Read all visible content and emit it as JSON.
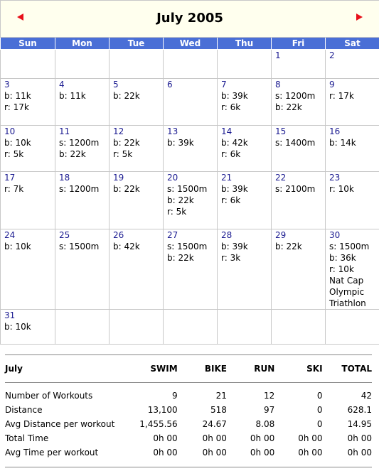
{
  "header": {
    "title": "July 2005"
  },
  "weekdays": [
    "Sun",
    "Mon",
    "Tue",
    "Wed",
    "Thu",
    "Fri",
    "Sat"
  ],
  "weeks": [
    [
      null,
      null,
      null,
      null,
      null,
      {
        "day": "1",
        "entries": []
      },
      {
        "day": "2",
        "entries": []
      }
    ],
    [
      {
        "day": "3",
        "entries": [
          "b: 11k",
          "r: 17k"
        ]
      },
      {
        "day": "4",
        "entries": [
          "b: 11k"
        ]
      },
      {
        "day": "5",
        "entries": [
          "b: 22k"
        ]
      },
      {
        "day": "6",
        "entries": []
      },
      {
        "day": "7",
        "entries": [
          "b: 39k",
          "r: 6k"
        ]
      },
      {
        "day": "8",
        "entries": [
          "s: 1200m",
          "b: 22k"
        ]
      },
      {
        "day": "9",
        "entries": [
          "r: 17k"
        ]
      }
    ],
    [
      {
        "day": "10",
        "entries": [
          "b: 10k",
          "r: 5k"
        ]
      },
      {
        "day": "11",
        "entries": [
          "s: 1200m",
          "b: 22k"
        ]
      },
      {
        "day": "12",
        "entries": [
          "b: 22k",
          "r: 5k"
        ]
      },
      {
        "day": "13",
        "entries": [
          "b: 39k"
        ]
      },
      {
        "day": "14",
        "entries": [
          "b: 42k",
          "r: 6k"
        ]
      },
      {
        "day": "15",
        "entries": [
          "s: 1400m"
        ]
      },
      {
        "day": "16",
        "entries": [
          "b: 14k"
        ]
      }
    ],
    [
      {
        "day": "17",
        "entries": [
          "r: 7k"
        ]
      },
      {
        "day": "18",
        "entries": [
          "s: 1200m"
        ]
      },
      {
        "day": "19",
        "entries": [
          "b: 22k"
        ]
      },
      {
        "day": "20",
        "entries": [
          "s: 1500m",
          "b: 22k",
          "r: 5k"
        ]
      },
      {
        "day": "21",
        "entries": [
          "b: 39k",
          "r: 6k"
        ]
      },
      {
        "day": "22",
        "entries": [
          "s: 2100m"
        ]
      },
      {
        "day": "23",
        "entries": [
          "r: 10k"
        ]
      }
    ],
    [
      {
        "day": "24",
        "entries": [
          "b: 10k"
        ]
      },
      {
        "day": "25",
        "entries": [
          "s: 1500m"
        ]
      },
      {
        "day": "26",
        "entries": [
          "b: 42k"
        ]
      },
      {
        "day": "27",
        "entries": [
          "s: 1500m",
          "b: 22k"
        ]
      },
      {
        "day": "28",
        "entries": [
          "b: 39k",
          "r: 3k"
        ]
      },
      {
        "day": "29",
        "entries": [
          "b: 22k"
        ]
      },
      {
        "day": "30",
        "entries": [
          "s: 1500m",
          "b: 36k",
          "r: 10k"
        ],
        "note": "Nat Cap Olympic Triathlon"
      }
    ],
    [
      {
        "day": "31",
        "entries": [
          "b: 10k"
        ]
      },
      null,
      null,
      null,
      null,
      null,
      null
    ]
  ],
  "summary": {
    "headers": [
      "July",
      "SWIM",
      "BIKE",
      "RUN",
      "SKI",
      "TOTAL"
    ],
    "rows": [
      [
        "Number of Workouts",
        "9",
        "21",
        "12",
        "0",
        "42"
      ],
      [
        "Distance",
        "13,100",
        "518",
        "97",
        "0",
        "628.1"
      ],
      [
        "Avg Distance per workout",
        "1,455.56",
        "24.67",
        "8.08",
        "0",
        "14.95"
      ],
      [
        "Total Time",
        "0h 00",
        "0h 00",
        "0h 00",
        "0h 00",
        "0h 00"
      ],
      [
        "Avg Time per workout",
        "0h 00",
        "0h 00",
        "0h 00",
        "0h 00",
        "0h 00"
      ]
    ]
  }
}
